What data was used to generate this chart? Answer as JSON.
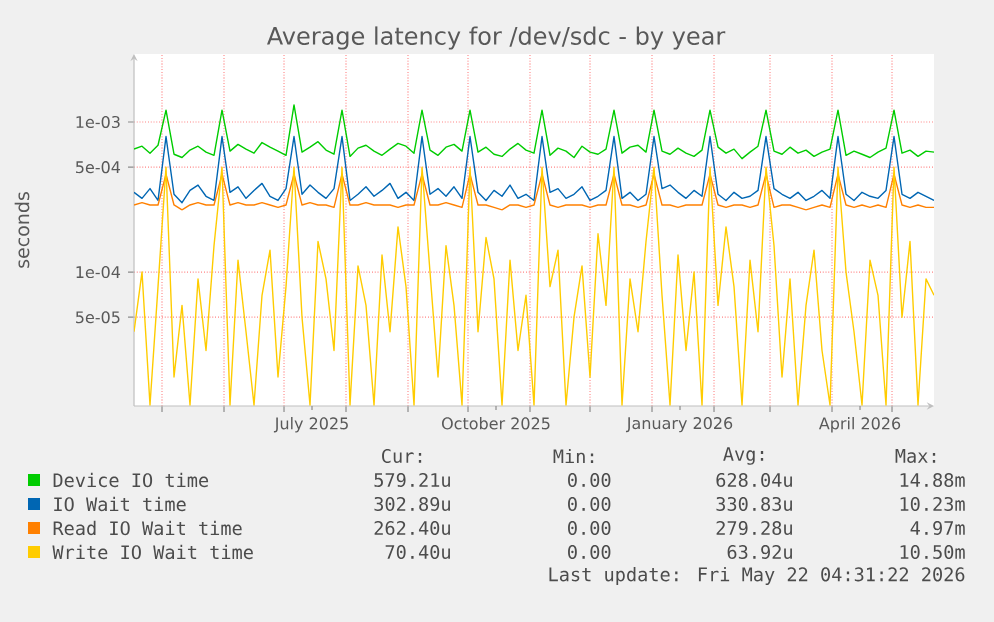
{
  "chart_data": {
    "type": "line",
    "title": "Average latency for /dev/sdc - by year",
    "ylabel": "seconds",
    "log": "y",
    "grid": true,
    "legend": "bottom",
    "line_style": "solid",
    "marker": "none",
    "xlim": [
      "2025-04-17",
      "2026-05-22"
    ],
    "ylim": [
      1.28e-05,
      0.00284
    ],
    "xticks": [
      {
        "value": "2025-05-01",
        "label": null
      },
      {
        "value": "2025-06-01",
        "label": null
      },
      {
        "value": "2025-07-01",
        "label": null
      },
      {
        "value": "2025-07-15",
        "label": "July 2025"
      },
      {
        "value": "2025-08-01",
        "label": null
      },
      {
        "value": "2025-09-01",
        "label": null
      },
      {
        "value": "2025-10-01",
        "label": null
      },
      {
        "value": "2025-10-15",
        "label": "October 2025"
      },
      {
        "value": "2025-11-01",
        "label": null
      },
      {
        "value": "2025-12-01",
        "label": null
      },
      {
        "value": "2026-01-01",
        "label": null
      },
      {
        "value": "2026-01-15",
        "label": "January 2026"
      },
      {
        "value": "2026-02-01",
        "label": null
      },
      {
        "value": "2026-03-01",
        "label": null
      },
      {
        "value": "2026-04-01",
        "label": null
      },
      {
        "value": "2026-04-15",
        "label": "April 2026"
      },
      {
        "value": "2026-05-01",
        "label": null
      }
    ],
    "yticks": [
      {
        "value": 5e-05,
        "label": "5e-05"
      },
      {
        "value": 0.0001,
        "label": "1e-04"
      },
      {
        "value": 0.0005,
        "label": "5e-04"
      },
      {
        "value": 0.001,
        "label": "1e-03"
      }
    ],
    "x": [
      "2025-04-17",
      "2025-04-21",
      "2025-04-25",
      "2025-04-29",
      "2025-05-03",
      "2025-05-07",
      "2025-05-11",
      "2025-05-15",
      "2025-05-19",
      "2025-05-23",
      "2025-05-27",
      "2025-05-31",
      "2025-06-04",
      "2025-06-08",
      "2025-06-12",
      "2025-06-16",
      "2025-06-20",
      "2025-06-24",
      "2025-06-28",
      "2025-07-02",
      "2025-07-06",
      "2025-07-10",
      "2025-07-14",
      "2025-07-18",
      "2025-07-22",
      "2025-07-26",
      "2025-07-30",
      "2025-08-03",
      "2025-08-07",
      "2025-08-11",
      "2025-08-15",
      "2025-08-19",
      "2025-08-23",
      "2025-08-27",
      "2025-08-31",
      "2025-09-04",
      "2025-09-08",
      "2025-09-12",
      "2025-09-16",
      "2025-09-20",
      "2025-09-24",
      "2025-09-28",
      "2025-10-02",
      "2025-10-06",
      "2025-10-10",
      "2025-10-14",
      "2025-10-18",
      "2025-10-22",
      "2025-10-26",
      "2025-10-30",
      "2025-11-03",
      "2025-11-07",
      "2025-11-11",
      "2025-11-15",
      "2025-11-19",
      "2025-11-23",
      "2025-11-27",
      "2025-12-01",
      "2025-12-05",
      "2025-12-09",
      "2025-12-13",
      "2025-12-17",
      "2025-12-21",
      "2025-12-25",
      "2025-12-29",
      "2026-01-02",
      "2026-01-06",
      "2026-01-10",
      "2026-01-14",
      "2026-01-18",
      "2026-01-22",
      "2026-01-26",
      "2026-01-30",
      "2026-02-03",
      "2026-02-07",
      "2026-02-11",
      "2026-02-15",
      "2026-02-19",
      "2026-02-23",
      "2026-02-27",
      "2026-03-03",
      "2026-03-07",
      "2026-03-11",
      "2026-03-15",
      "2026-03-19",
      "2026-03-23",
      "2026-03-27",
      "2026-03-31",
      "2026-04-04",
      "2026-04-08",
      "2026-04-12",
      "2026-04-16",
      "2026-04-20",
      "2026-04-24",
      "2026-04-28",
      "2026-05-02",
      "2026-05-06",
      "2026-05-10",
      "2026-05-14",
      "2026-05-18",
      "2026-05-22"
    ],
    "series": [
      {
        "name": "Device IO time",
        "color": "#00cc00",
        "values": [
          0.00066,
          0.00069,
          0.00062,
          0.0007,
          0.0012,
          0.00061,
          0.00058,
          0.00065,
          0.00069,
          0.00063,
          0.0006,
          0.0012,
          0.00064,
          0.00071,
          0.00066,
          0.00062,
          0.00073,
          0.00068,
          0.00064,
          0.0006,
          0.0013,
          0.00063,
          0.00068,
          0.00074,
          0.00065,
          0.00061,
          0.0012,
          0.00059,
          0.00067,
          0.0007,
          0.00064,
          0.0006,
          0.00066,
          0.00072,
          0.00069,
          0.00062,
          0.0012,
          0.00065,
          0.0006,
          0.00068,
          0.00071,
          0.00064,
          0.0012,
          0.00063,
          0.00068,
          0.00061,
          0.00059,
          0.00066,
          0.00072,
          0.00065,
          0.00062,
          0.0012,
          0.0006,
          0.00067,
          0.00064,
          0.00058,
          0.00069,
          0.00063,
          0.00061,
          0.00066,
          0.0012,
          0.00062,
          0.00068,
          0.0007,
          0.00063,
          0.0012,
          0.00064,
          0.00061,
          0.00067,
          0.00062,
          0.00059,
          0.00065,
          0.0012,
          0.00068,
          0.00062,
          0.00066,
          0.00057,
          0.00063,
          0.00069,
          0.0012,
          0.00064,
          0.00061,
          0.00068,
          0.00062,
          0.00065,
          0.00059,
          0.00063,
          0.00066,
          0.0012,
          0.0006,
          0.00064,
          0.00061,
          0.00058,
          0.00063,
          0.00067,
          0.0012,
          0.00062,
          0.00065,
          0.00059,
          0.00064,
          0.00063
        ]
      },
      {
        "name": "IO Wait time",
        "color": "#0066b3",
        "values": [
          0.00034,
          0.00031,
          0.00036,
          0.0003,
          0.0008,
          0.00033,
          0.00029,
          0.00035,
          0.00038,
          0.00032,
          0.0003,
          0.0008,
          0.00034,
          0.00037,
          0.00031,
          0.00035,
          0.00039,
          0.00032,
          0.0003,
          0.00036,
          0.0008,
          0.00033,
          0.00038,
          0.00034,
          0.00031,
          0.00036,
          0.0008,
          0.0003,
          0.00033,
          0.00037,
          0.00032,
          0.00035,
          0.00039,
          0.00031,
          0.00034,
          0.0003,
          0.0008,
          0.00033,
          0.00036,
          0.00032,
          0.00037,
          0.00031,
          0.0008,
          0.00034,
          0.0003,
          0.00035,
          0.00032,
          0.00038,
          0.00031,
          0.00033,
          0.0003,
          0.0008,
          0.00034,
          0.00036,
          0.00031,
          0.00033,
          0.00037,
          0.0003,
          0.00032,
          0.00035,
          0.0008,
          0.00031,
          0.00034,
          0.0003,
          0.00033,
          0.0008,
          0.00036,
          0.00038,
          0.00034,
          0.00031,
          0.00035,
          0.00032,
          0.0008,
          0.00033,
          0.0003,
          0.00034,
          0.00031,
          0.00032,
          0.00035,
          0.0008,
          0.00036,
          0.00033,
          0.00031,
          0.00034,
          0.0003,
          0.00032,
          0.00035,
          0.00031,
          0.0008,
          0.00033,
          0.0003,
          0.00034,
          0.00032,
          0.00031,
          0.00035,
          0.0008,
          0.00033,
          0.00031,
          0.00034,
          0.00032,
          0.0003
        ]
      },
      {
        "name": "Read IO Wait time",
        "color": "#ff8000",
        "values": [
          0.00028,
          0.00029,
          0.00028,
          0.00028,
          0.00045,
          0.00028,
          0.00026,
          0.00028,
          0.00029,
          0.00028,
          0.00028,
          0.00045,
          0.00028,
          0.00029,
          0.00028,
          0.00028,
          0.00029,
          0.00028,
          0.00027,
          0.00028,
          0.00045,
          0.00028,
          0.00029,
          0.00028,
          0.00028,
          0.00027,
          0.00045,
          0.00028,
          0.00028,
          0.00029,
          0.00028,
          0.00028,
          0.00028,
          0.00027,
          0.00028,
          0.00028,
          0.00045,
          0.00028,
          0.00028,
          0.00029,
          0.00028,
          0.00027,
          0.00045,
          0.00028,
          0.00028,
          0.00027,
          0.00026,
          0.00028,
          0.00028,
          0.00027,
          0.00028,
          0.00045,
          0.00028,
          0.00027,
          0.00028,
          0.00028,
          0.00028,
          0.00027,
          0.00028,
          0.00028,
          0.00045,
          0.00028,
          0.00028,
          0.00027,
          0.00028,
          0.00045,
          0.00028,
          0.00028,
          0.00027,
          0.00028,
          0.00028,
          0.00028,
          0.00045,
          0.00028,
          0.00027,
          0.00028,
          0.00028,
          0.00027,
          0.00028,
          0.00045,
          0.00027,
          0.00028,
          0.00028,
          0.00027,
          0.00026,
          0.00027,
          0.00028,
          0.00027,
          0.00045,
          0.00028,
          0.00027,
          0.00028,
          0.00027,
          0.00028,
          0.00027,
          0.00045,
          0.00028,
          0.00027,
          0.00028,
          0.00027,
          0.00027
        ]
      },
      {
        "name": "Write IO Wait time",
        "color": "#ffcc00",
        "values": [
          4e-05,
          0.0001,
          1.3e-05,
          8e-05,
          0.0005,
          2e-05,
          6e-05,
          1.3e-05,
          9e-05,
          3e-05,
          0.00015,
          0.0005,
          1.3e-05,
          0.00012,
          4e-05,
          1.3e-05,
          7e-05,
          0.00014,
          2e-05,
          8e-05,
          0.0005,
          5e-05,
          1.3e-05,
          0.00016,
          9e-05,
          3e-05,
          0.0005,
          1.3e-05,
          0.00011,
          6e-05,
          1.3e-05,
          0.00013,
          4e-05,
          0.0002,
          8e-05,
          1.3e-05,
          0.0005,
          0.0001,
          2e-05,
          0.00015,
          6e-05,
          1.3e-05,
          0.0005,
          4e-05,
          0.00017,
          9e-05,
          1.3e-05,
          0.00012,
          3e-05,
          7e-05,
          1.3e-05,
          0.0005,
          8e-05,
          0.00014,
          1.3e-05,
          5e-05,
          0.00011,
          2e-05,
          0.00018,
          6e-05,
          0.0005,
          1.3e-05,
          9e-05,
          4e-05,
          0.00016,
          0.0005,
          7e-05,
          1.3e-05,
          0.00013,
          3e-05,
          0.0001,
          1.3e-05,
          0.0005,
          6e-05,
          0.0002,
          8e-05,
          1.3e-05,
          0.00012,
          4e-05,
          0.0005,
          0.00015,
          2e-05,
          9e-05,
          1.3e-05,
          6e-05,
          0.00014,
          3e-05,
          1.3e-05,
          0.0005,
          0.0001,
          4e-05,
          1.3e-05,
          0.00012,
          7e-05,
          1.3e-05,
          0.0005,
          5e-05,
          0.00016,
          1.3e-05,
          9e-05,
          7e-05
        ]
      }
    ],
    "annotations": [
      "Cur:",
      "Min:",
      "Avg:",
      "Max:",
      "579.21u",
      "0.00",
      "628.04u",
      "14.88m",
      "302.89u",
      "0.00",
      "330.83u",
      "10.23m",
      "262.40u",
      "0.00",
      "279.28u",
      "4.97m",
      "70.40u",
      "0.00",
      "63.92u",
      "10.50m",
      "Last update: Fri May 22 04:31:22 2026"
    ]
  }
}
